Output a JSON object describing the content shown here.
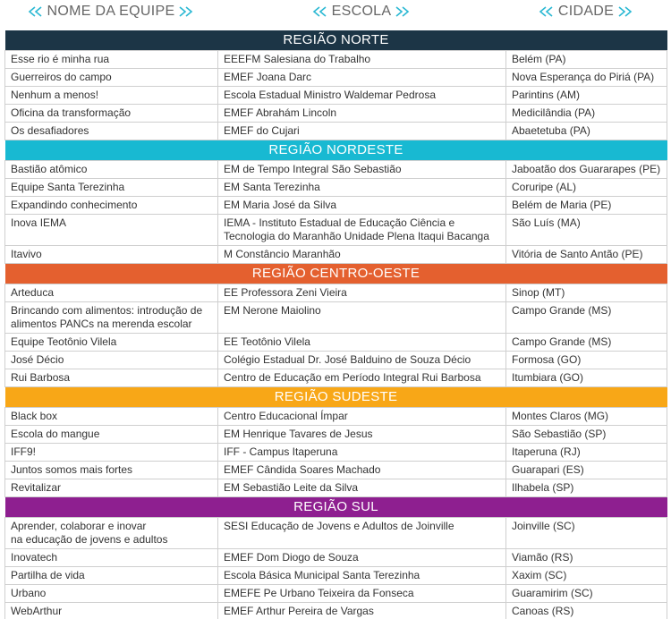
{
  "header": {
    "columns": [
      "NOME DA EQUIPE",
      "ESCOLA",
      "CIDADE"
    ]
  },
  "regions": [
    {
      "name": "REGIÃO NORTE",
      "color": "#1c3546",
      "rows": [
        [
          "Esse rio é minha rua",
          "EEEFM Salesiana do Trabalho",
          "Belém (PA)"
        ],
        [
          "Guerreiros do campo",
          "EMEF Joana Darc",
          "Nova Esperança do Piriá (PA)"
        ],
        [
          "Nenhum a menos!",
          "Escola Estadual Ministro Waldemar Pedrosa",
          "Parintins (AM)"
        ],
        [
          "Oficina da transformação",
          "EMEF Abrahám Lincoln",
          "Medicilândia (PA)"
        ],
        [
          "Os desafiadores",
          "EMEF do Cujari",
          "Abaetetuba (PA)"
        ]
      ]
    },
    {
      "name": "REGIÃO NORDESTE",
      "color": "#18b9d2",
      "rows": [
        [
          "Bastião atômico",
          "EM de Tempo Integral São Sebastião",
          "Jaboatão dos Guararapes (PE)"
        ],
        [
          "Equipe Santa Terezinha",
          "EM Santa Terezinha",
          "Coruripe (AL)"
        ],
        [
          "Expandindo conhecimento",
          "EM Maria José da Silva",
          "Belém de Maria (PE)"
        ],
        [
          "Inova IEMA",
          "IEMA - Instituto Estadual de Educação Ciência e\nTecnologia do Maranhão Unidade Plena Itaqui Bacanga",
          "São Luís (MA)"
        ],
        [
          "Itavivo",
          "M Constâncio Maranhão",
          "Vitória de Santo Antão (PE)"
        ]
      ]
    },
    {
      "name": "REGIÃO CENTRO-OESTE",
      "color": "#e4602f",
      "rows": [
        [
          "Arteduca",
          "EE Professora Zeni Vieira",
          "Sinop (MT)"
        ],
        [
          "Brincando com alimentos: introdução de\nalimentos PANCs na merenda escolar",
          "EM Nerone Maiolino",
          "Campo Grande (MS)"
        ],
        [
          "Equipe Teotônio Vilela",
          "EE Teotônio Vilela",
          "Campo Grande (MS)"
        ],
        [
          "José Décio",
          "Colégio Estadual Dr. José Balduino de Souza Décio",
          "Formosa (GO)"
        ],
        [
          "Rui Barbosa",
          "Centro de Educação em Período Integral Rui Barbosa",
          "Itumbiara (GO)"
        ]
      ]
    },
    {
      "name": "REGIÃO SUDESTE",
      "color": "#f8a717",
      "rows": [
        [
          "Black box",
          "Centro Educacional Ímpar",
          "Montes Claros (MG)"
        ],
        [
          "Escola do mangue",
          "EM Henrique Tavares de Jesus",
          "São Sebastião (SP)"
        ],
        [
          "IFF9!",
          "IFF - Campus Itaperuna",
          "Itaperuna (RJ)"
        ],
        [
          "Juntos somos mais fortes",
          "EMEF Cândida Soares Machado",
          "Guarapari (ES)"
        ],
        [
          "Revitalizar",
          "EM Sebastião Leite da Silva",
          "Ilhabela (SP)"
        ]
      ]
    },
    {
      "name": "REGIÃO SUL",
      "color": "#8e1f90",
      "rows": [
        [
          "Aprender,  colaborar e inovar\nna educação de jovens e adultos",
          "SESI Educação de Jovens e Adultos de Joinville",
          "Joinville (SC)"
        ],
        [
          "Inovatech",
          "EMEF Dom Diogo de Souza",
          "Viamão (RS)"
        ],
        [
          "Partilha de vida",
          "Escola Básica Municipal Santa Terezinha",
          "Xaxim (SC)"
        ],
        [
          "Urbano",
          "EMEFE Pe Urbano Teixeira da Fonseca",
          "Guaramirim (SC)"
        ],
        [
          "WebArthur",
          "EMEF Arthur Pereira de Vargas",
          "Canoas (RS)"
        ]
      ]
    }
  ]
}
